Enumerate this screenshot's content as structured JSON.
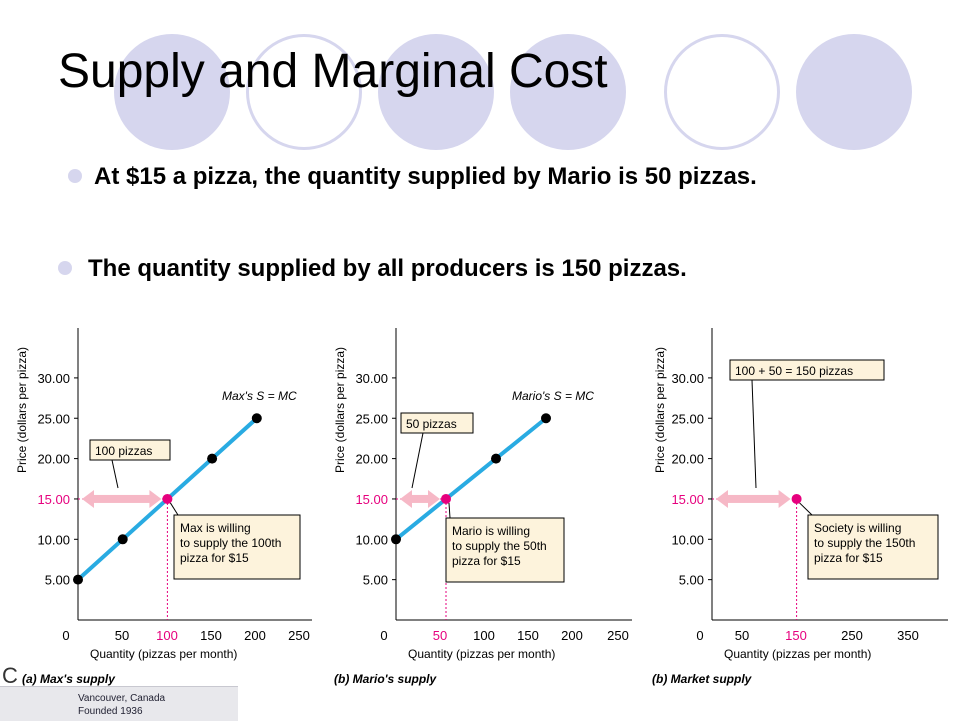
{
  "slide": {
    "title": "Supply and Marginal Cost",
    "bullets": [
      "At $15 a pizza, the quantity supplied by Mario is 50 pizzas.",
      "The quantity supplied by all producers is 150 pizzas."
    ],
    "logo": {
      "mark": "C",
      "line1": "Vancouver, Canada",
      "line2": "Founded 1936"
    }
  },
  "colors": {
    "accent": "#d6d6ee",
    "curve": "#29abe2",
    "point": "#e6007e",
    "arrow": "#f6b8c6",
    "callout_bg": "#fdf3dc"
  },
  "chart_data": [
    {
      "type": "line",
      "panel_label": "(a) Max's supply",
      "ylabel": "Price (dollars per pizza)",
      "xlabel": "Quantity (pizzas per month)",
      "xlim": [
        0,
        300
      ],
      "ylim": [
        0,
        35
      ],
      "x_ticks": [
        "0",
        "50",
        "100",
        "150",
        "200",
        "250"
      ],
      "y_ticks": [
        "5.00",
        "10.00",
        "15.00",
        "20.00",
        "25.00",
        "30.00"
      ],
      "series": [
        {
          "name": "Max's S = MC",
          "x": [
            0,
            50,
            150,
            200
          ],
          "y": [
            5,
            10,
            20,
            25
          ]
        }
      ],
      "highlight": {
        "x": 100,
        "y": 15,
        "x_label": "100",
        "y_label": "15.00"
      },
      "arrow_label": "100 pizzas",
      "callout": [
        "Max is willing",
        "to supply the 100th",
        "pizza for $15"
      ]
    },
    {
      "type": "line",
      "panel_label": "(b) Mario's supply",
      "ylabel": "Price (dollars per pizza)",
      "xlabel": "Quantity (pizzas per month)",
      "xlim": [
        0,
        250
      ],
      "ylim": [
        0,
        35
      ],
      "x_ticks": [
        "0",
        "50",
        "100",
        "150",
        "200",
        "250"
      ],
      "y_ticks": [
        "5.00",
        "10.00",
        "15.00",
        "20.00",
        "25.00",
        "30.00"
      ],
      "series": [
        {
          "name": "Mario's S = MC",
          "x": [
            0,
            100,
            150
          ],
          "y": [
            10,
            20,
            25
          ]
        }
      ],
      "highlight": {
        "x": 50,
        "y": 15,
        "x_label": "50",
        "y_label": "15.00"
      },
      "arrow_label": "50 pizzas",
      "callout": [
        "Mario is willing",
        "to supply the 50th",
        "pizza for $15"
      ]
    },
    {
      "type": "scatter",
      "panel_label": "(b) Market supply",
      "ylabel": "Price (dollars per pizza)",
      "xlabel": "Quantity (pizzas per month)",
      "xlim": [
        0,
        400
      ],
      "ylim": [
        0,
        35
      ],
      "x_ticks": [
        "0",
        "50",
        "150",
        "250",
        "350"
      ],
      "y_ticks": [
        "5.00",
        "10.00",
        "15.00",
        "20.00",
        "25.00",
        "30.00"
      ],
      "series": [],
      "highlight": {
        "x": 150,
        "y": 15,
        "x_label": "150",
        "y_label": "15.00"
      },
      "arrow_label": "100 + 50 = 150 pizzas",
      "callout": [
        "Society is willing",
        "to supply the 150th",
        "pizza for $15"
      ]
    }
  ]
}
